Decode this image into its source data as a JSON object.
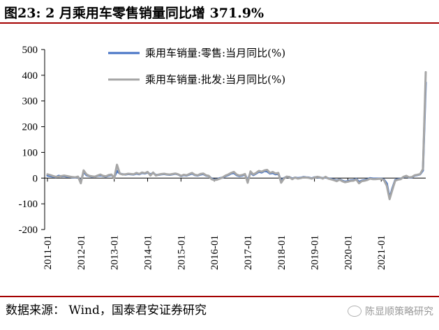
{
  "header": {
    "title": "图23: 2 月乘用车零售销量同比增 371.9%"
  },
  "footer": {
    "source": "数据来源： Wind，国泰君安证券研究",
    "watermark": "陈显顺策略研究"
  },
  "colors": {
    "retail": "#4472c4",
    "wholesale": "#a6a6a6",
    "rule": "#a40000"
  },
  "chart_data": {
    "type": "line",
    "title": "",
    "xlabel": "",
    "ylabel": "",
    "ylim": [
      -200,
      500
    ],
    "yticks": [
      500,
      400,
      300,
      200,
      100,
      0,
      -100,
      -200
    ],
    "ytick_labels": [
      "500",
      "400",
      "300",
      "200",
      "100",
      "0",
      "-100",
      "-200"
    ],
    "x_start": "2011-01",
    "x_tick_labels": [
      "2011-01",
      "2012-01",
      "2013-01",
      "2014-01",
      "2015-01",
      "2016-01",
      "2017-01",
      "2018-01",
      "2019-01",
      "2020-01",
      "2021-01"
    ],
    "legend_position": "top-center",
    "series": [
      {
        "name": "乘用车销量:零售:当月同比(%)",
        "values": [
          10,
          8,
          6,
          4,
          9,
          7,
          8,
          6,
          5,
          3,
          2,
          5,
          -15,
          25,
          12,
          8,
          6,
          5,
          9,
          12,
          8,
          6,
          10,
          12,
          3,
          28,
          18,
          15,
          14,
          16,
          15,
          14,
          18,
          15,
          20,
          18,
          22,
          14,
          20,
          12,
          13,
          15,
          16,
          14,
          13,
          15,
          17,
          14,
          8,
          12,
          10,
          14,
          18,
          12,
          10,
          14,
          16,
          10,
          8,
          -2,
          -6,
          -5,
          0,
          2,
          8,
          12,
          18,
          20,
          12,
          8,
          10,
          14,
          -10,
          22,
          12,
          18,
          25,
          22,
          28,
          26,
          18,
          20,
          15,
          18,
          -12,
          0,
          5,
          4,
          -2,
          2,
          0,
          1,
          4,
          3,
          2,
          -1,
          3,
          4,
          2,
          0,
          3,
          -1,
          -3,
          -6,
          -10,
          -5,
          -10,
          -14,
          -12,
          -9,
          -8,
          -3,
          -15,
          -10,
          -8,
          -5,
          0,
          -2,
          -2,
          -2,
          -2,
          -6,
          -21,
          -78,
          -40,
          -8,
          -4,
          -3,
          4,
          8,
          2,
          3,
          10,
          12,
          15,
          30,
          372
        ]
      },
      {
        "name": "乘用车销量:批发:当月同比(%)",
        "values": [
          15,
          12,
          8,
          5,
          6,
          8,
          10,
          8,
          6,
          4,
          3,
          6,
          -20,
          30,
          15,
          9,
          7,
          5,
          10,
          14,
          9,
          7,
          12,
          14,
          0,
          52,
          18,
          14,
          15,
          17,
          16,
          15,
          20,
          16,
          22,
          19,
          24,
          10,
          22,
          10,
          14,
          16,
          17,
          15,
          14,
          16,
          18,
          15,
          9,
          13,
          11,
          16,
          20,
          13,
          11,
          16,
          18,
          11,
          9,
          -4,
          -8,
          -6,
          -2,
          3,
          10,
          14,
          20,
          24,
          14,
          10,
          12,
          16,
          -18,
          26,
          14,
          20,
          28,
          25,
          30,
          32,
          20,
          24,
          18,
          20,
          -18,
          -2,
          6,
          4,
          -4,
          2,
          -2,
          0,
          3,
          2,
          1,
          -2,
          2,
          5,
          3,
          -2,
          5,
          -2,
          -5,
          -8,
          -12,
          -6,
          -12,
          -16,
          -14,
          -11,
          -10,
          -5,
          -20,
          -12,
          -10,
          -7,
          -2,
          -4,
          -4,
          -3,
          -3,
          -8,
          -30,
          -82,
          -45,
          -10,
          -6,
          -4,
          5,
          9,
          3,
          4,
          11,
          13,
          16,
          35,
          412
        ]
      }
    ]
  }
}
